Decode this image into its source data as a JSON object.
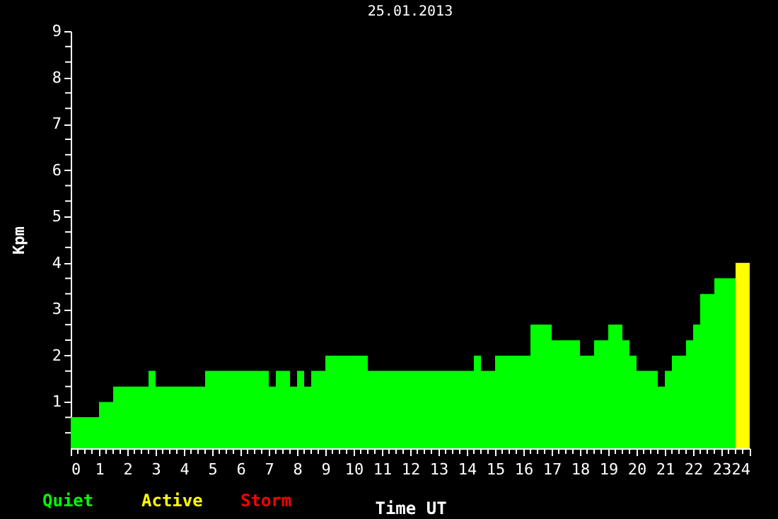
{
  "chart_data": {
    "type": "area",
    "title": "25.01.2013",
    "xlabel": "Time UT",
    "ylabel": "Kpm",
    "series": [
      {
        "name": "Quiet",
        "color": "#00ff00",
        "x": [
          0,
          1,
          1.5,
          2.75,
          3,
          4.75,
          7,
          7.25,
          7.75,
          8,
          8.25,
          8.5,
          9,
          10.5,
          14.25,
          14.5,
          15,
          16.25,
          17,
          18,
          18.5,
          19,
          19.5,
          19.75,
          20,
          20.75,
          21,
          21.25,
          21.75,
          22,
          22.25,
          22.75,
          23.5
        ],
        "values": [
          0.67,
          1,
          1.33,
          1.67,
          1.33,
          1.67,
          1.33,
          1.67,
          1.33,
          1.67,
          1.33,
          1.67,
          2,
          1.67,
          2,
          1.67,
          2,
          2.67,
          2.33,
          2,
          2.33,
          2.67,
          2.33,
          2,
          1.67,
          1.33,
          1.67,
          2,
          2.33,
          2.67,
          3.33,
          3.67,
          3.67
        ]
      },
      {
        "name": "Active",
        "color": "#ffff00",
        "x": [
          23.5,
          24
        ],
        "values": [
          4,
          4
        ]
      },
      {
        "name": "Storm",
        "color": "#ff0000"
      }
    ],
    "xlim": [
      0,
      24
    ],
    "ylim": [
      0,
      9
    ],
    "xticks": [
      0,
      1,
      2,
      3,
      4,
      5,
      6,
      7,
      8,
      9,
      10,
      11,
      12,
      13,
      14,
      15,
      16,
      17,
      18,
      19,
      20,
      21,
      22,
      23,
      24
    ],
    "yticks": [
      1,
      2,
      3,
      4,
      5,
      6,
      7,
      8,
      9
    ],
    "grid": false,
    "legend": "bottom"
  }
}
